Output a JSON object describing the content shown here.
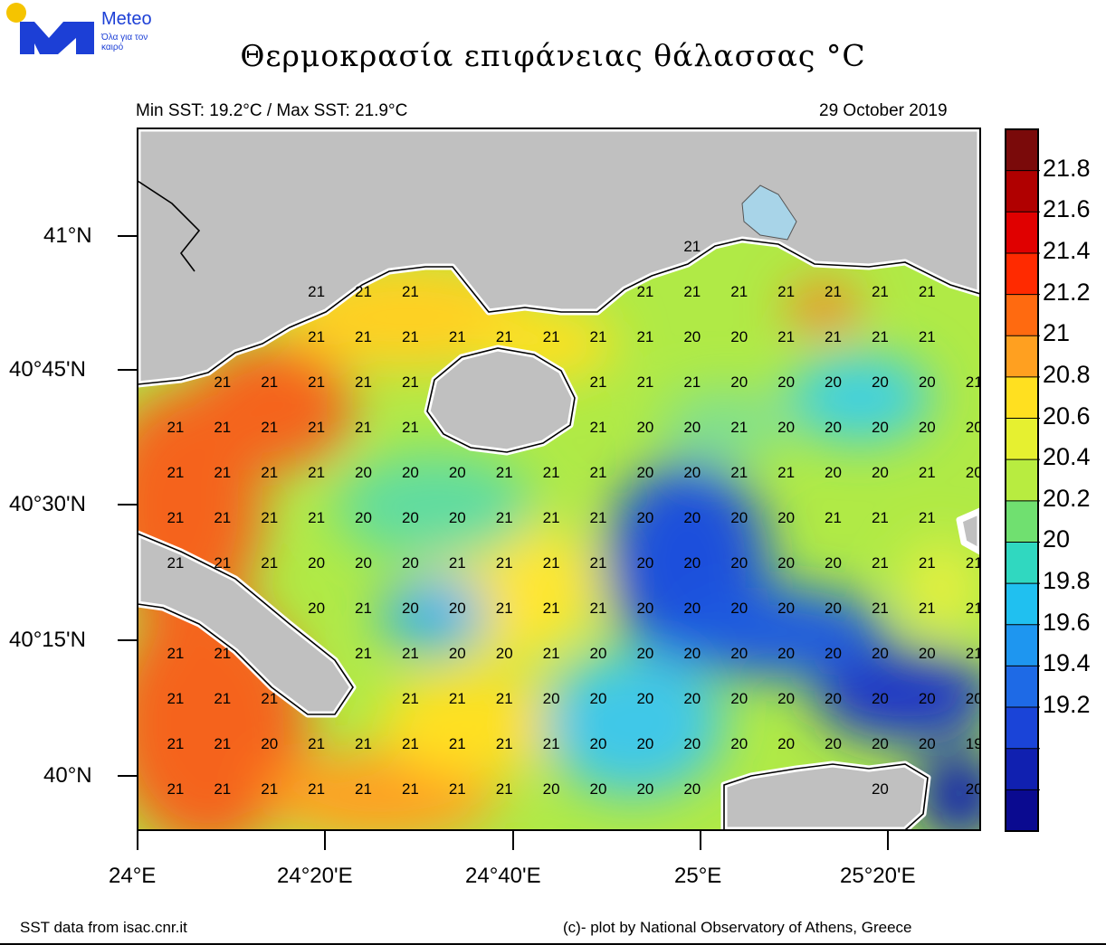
{
  "logo": {
    "name": "Meteo",
    "tagline": "Όλα για τον καιρό"
  },
  "title": "Θερμοκρασία  επιφάνειας θάλασσας °C",
  "subtitle_left": "Min SST: 19.2°C / Max SST: 21.9°C",
  "subtitle_right": "29 October 2019",
  "lat_ticks": [
    "41°N",
    "40°45'N",
    "40°30'N",
    "40°15'N",
    "40°N"
  ],
  "lon_ticks": [
    "24°E",
    "24°20'E",
    "24°40'E",
    "25°E",
    "25°20'E"
  ],
  "colorbar": {
    "labels": [
      "21.8",
      "21.6",
      "21.4",
      "21.2",
      "21",
      "20.8",
      "20.6",
      "20.4",
      "20.2",
      "20",
      "19.8",
      "19.6",
      "19.4",
      "19.2"
    ],
    "colors": [
      "#7a0a0a",
      "#b00000",
      "#e00000",
      "#ff2a00",
      "#ff6a10",
      "#ffa020",
      "#ffe020",
      "#e6f030",
      "#b8ec40",
      "#70e070",
      "#30d8c0",
      "#20c0f0",
      "#1e96f0",
      "#1e6ae6",
      "#1a44d8",
      "#1020b0",
      "#0a0a90"
    ]
  },
  "grid_values": [
    [
      "",
      "",
      "",
      "",
      "",
      "",
      "",
      "",
      "",
      "",
      "",
      "",
      "21",
      "",
      "",
      "",
      "",
      ""
    ],
    [
      "",
      "",
      "",
      "",
      "21",
      "21",
      "21",
      "",
      "",
      "",
      "",
      "21",
      "21",
      "21",
      "21",
      "21",
      "21",
      "21"
    ],
    [
      "",
      "",
      "",
      "",
      "21",
      "21",
      "21",
      "21",
      "21",
      "21",
      "21",
      "21",
      "20",
      "20",
      "21",
      "21",
      "21",
      "21"
    ],
    [
      "",
      "",
      "21",
      "21",
      "21",
      "21",
      "21",
      "",
      "",
      "",
      "21",
      "21",
      "21",
      "20",
      "20",
      "20",
      "20",
      "20",
      "21"
    ],
    [
      "",
      "21",
      "21",
      "21",
      "21",
      "21",
      "21",
      "",
      "",
      "",
      "21",
      "20",
      "20",
      "21",
      "20",
      "20",
      "20",
      "20",
      "20"
    ],
    [
      "",
      "21",
      "21",
      "21",
      "21",
      "20",
      "20",
      "20",
      "21",
      "21",
      "21",
      "20",
      "20",
      "21",
      "21",
      "20",
      "20",
      "21",
      "20"
    ],
    [
      "",
      "21",
      "21",
      "21",
      "21",
      "20",
      "20",
      "20",
      "21",
      "21",
      "21",
      "20",
      "20",
      "20",
      "20",
      "21",
      "21",
      "21",
      ""
    ],
    [
      "",
      "21",
      "21",
      "21",
      "20",
      "20",
      "20",
      "21",
      "21",
      "21",
      "21",
      "20",
      "20",
      "20",
      "20",
      "20",
      "21",
      "21",
      "21"
    ],
    [
      "",
      "",
      "",
      "",
      "20",
      "21",
      "20",
      "20",
      "21",
      "21",
      "21",
      "20",
      "20",
      "20",
      "20",
      "20",
      "21",
      "21",
      "21"
    ],
    [
      "",
      "21",
      "21",
      "",
      "",
      "21",
      "21",
      "20",
      "20",
      "21",
      "20",
      "20",
      "20",
      "20",
      "20",
      "20",
      "20",
      "20",
      "21"
    ],
    [
      "",
      "21",
      "21",
      "21",
      "",
      "",
      "21",
      "21",
      "21",
      "20",
      "20",
      "20",
      "20",
      "20",
      "20",
      "20",
      "20",
      "20",
      "20"
    ],
    [
      "",
      "21",
      "21",
      "20",
      "21",
      "21",
      "21",
      "21",
      "21",
      "21",
      "20",
      "20",
      "20",
      "20",
      "20",
      "20",
      "20",
      "20",
      "19"
    ],
    [
      "",
      "21",
      "21",
      "21",
      "21",
      "21",
      "21",
      "21",
      "21",
      "20",
      "20",
      "20",
      "20",
      "",
      "",
      "",
      "20",
      "",
      "20"
    ]
  ],
  "credit_left": "SST data from isac.cnr.it",
  "credit_right": "(c)- plot by National Observatory of Athens, Greece"
}
